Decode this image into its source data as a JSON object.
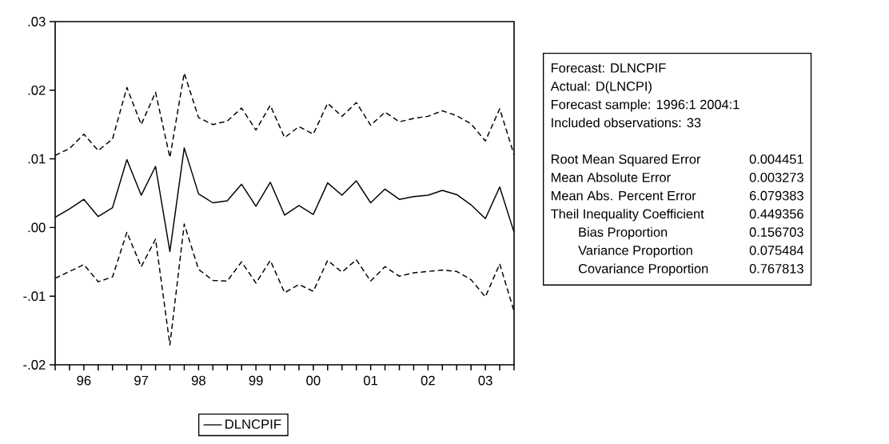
{
  "chart_data": [
    {
      "type": "line",
      "categories": [
        null,
        null,
        "96",
        null,
        null,
        null,
        "97",
        null,
        null,
        null,
        "98",
        null,
        null,
        null,
        "99",
        null,
        null,
        null,
        "00",
        null,
        null,
        null,
        "01",
        null,
        null,
        null,
        "02",
        null,
        null,
        null,
        "03",
        null,
        null
      ],
      "series": [
        {
          "name": "DLNCPIF",
          "color": "#000000",
          "line_style": "solid",
          "values": [
            0.0015,
            0.0027,
            0.0041,
            0.0016,
            0.0029,
            0.0099,
            0.0047,
            0.0089,
            -0.0035,
            0.0116,
            0.0049,
            0.0036,
            0.0039,
            0.0063,
            0.0031,
            0.0066,
            0.0018,
            0.0032,
            0.0019,
            0.0065,
            0.0047,
            0.0068,
            0.0036,
            0.0056,
            0.0041,
            0.0045,
            0.0047,
            0.0054,
            0.0048,
            0.0033,
            0.0013,
            0.0059,
            -0.0007
          ]
        },
        {
          "color": "#000000",
          "line_style": "dashed",
          "values": [
            0.0105,
            0.0115,
            0.0136,
            0.0112,
            0.0129,
            0.0204,
            0.015,
            0.0197,
            0.0102,
            0.0225,
            0.016,
            0.015,
            0.0155,
            0.0174,
            0.0142,
            0.0178,
            0.0131,
            0.0147,
            0.0136,
            0.0181,
            0.0162,
            0.0182,
            0.0149,
            0.0168,
            0.0154,
            0.0159,
            0.0162,
            0.017,
            0.0163,
            0.0151,
            0.0126,
            0.0173,
            0.0106
          ]
        },
        {
          "color": "#000000",
          "line_style": "dashed",
          "values": [
            -0.0074,
            -0.0064,
            -0.0054,
            -0.0079,
            -0.0072,
            -0.0007,
            -0.0057,
            -0.0017,
            -0.0171,
            0.0005,
            -0.0061,
            -0.0077,
            -0.0078,
            -0.005,
            -0.0081,
            -0.0048,
            -0.0095,
            -0.0083,
            -0.0093,
            -0.0048,
            -0.0065,
            -0.0047,
            -0.0078,
            -0.0057,
            -0.0071,
            -0.0066,
            -0.0064,
            -0.0062,
            -0.0064,
            -0.0076,
            -0.0101,
            -0.0053,
            -0.0122
          ]
        }
      ],
      "ylim": [
        -0.02,
        0.03
      ],
      "yticks": [
        {
          "value": -0.02,
          "label": "-.02"
        },
        {
          "value": -0.01,
          "label": "-.01"
        },
        {
          "value": 0,
          "label": ".00"
        },
        {
          "value": 0.01,
          "label": ".01"
        },
        {
          "value": 0.02,
          "label": ".02"
        },
        {
          "value": 0.03,
          "label": ".03"
        }
      ],
      "legend": "bottom"
    },
    {
      "type": "other",
      "annotations": [
        "Forecast: DLNCPIF",
        "Actual: D(LNCPI)",
        "Forecast sample: 1996:1 2004:1",
        "Included observations: 33"
      ],
      "categories": [
        "Root Mean Squared Error",
        "Mean Absolute Error",
        "Mean Abs. Percent Error",
        "Theil Inequality Coefficient",
        "Bias Proportion",
        "Variance Proportion",
        "Covariance Proportion"
      ],
      "values": [
        0.004451,
        0.003273,
        6.079383,
        0.449356,
        0.156703,
        0.075484,
        0.767813
      ],
      "data_labels": true
    }
  ]
}
